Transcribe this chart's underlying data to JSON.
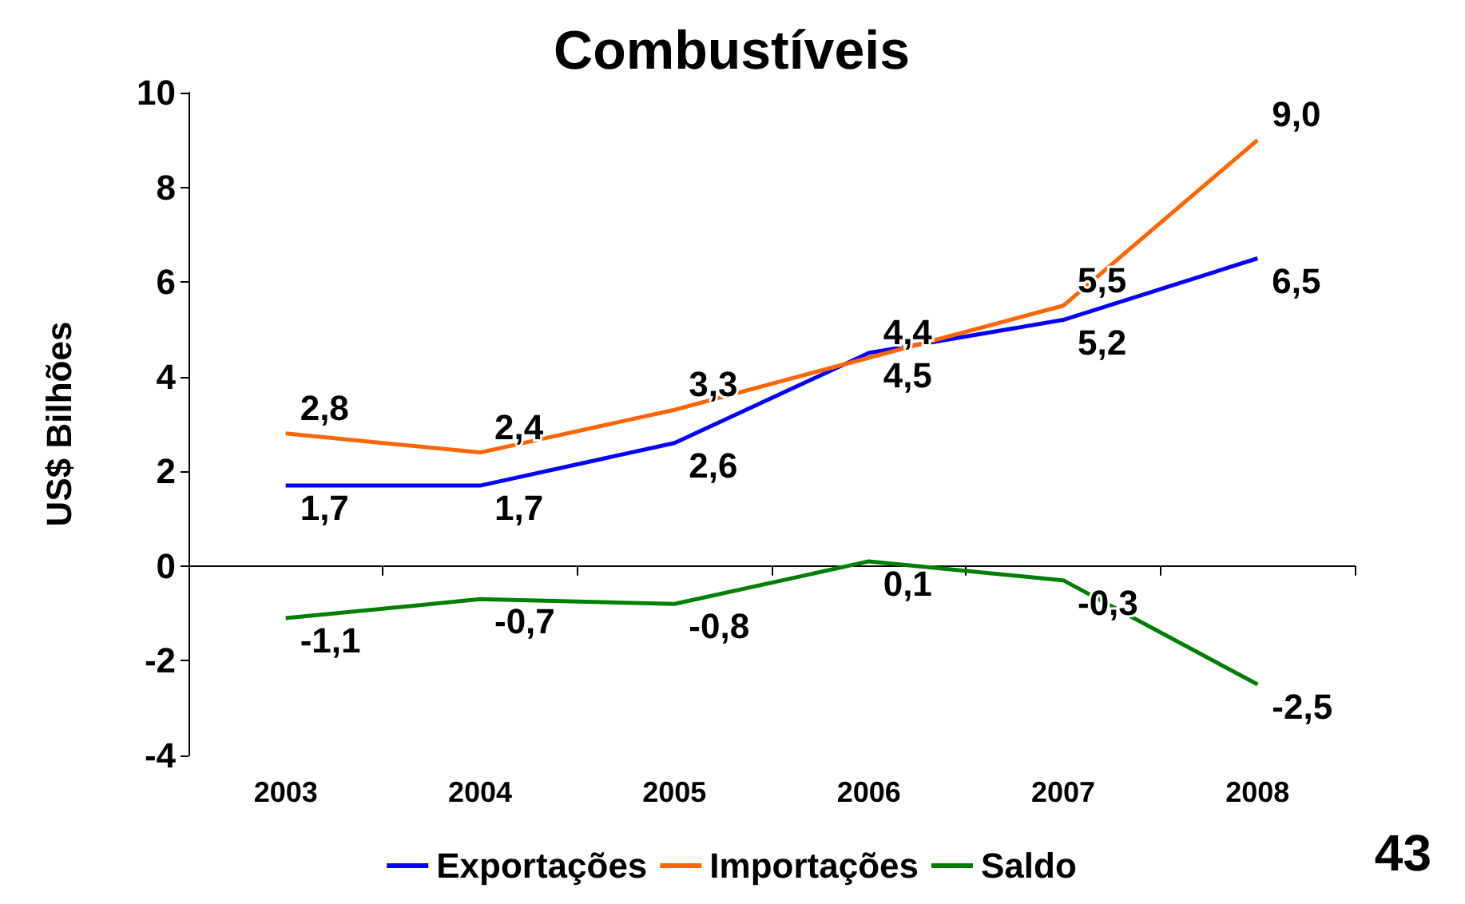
{
  "chart_data": {
    "type": "line",
    "title": "Combustíveis",
    "ylabel": "US$ Bilhões",
    "categories": [
      "2003",
      "2004",
      "2005",
      "2006",
      "2007",
      "2008"
    ],
    "series": [
      {
        "name": "Exportações",
        "color": "#0000ff",
        "values": [
          1.7,
          1.7,
          2.6,
          4.5,
          5.2,
          6.5
        ],
        "value_labels": [
          "1,7",
          "1,7",
          "2,6",
          "4,5",
          "5,2",
          "6,5"
        ]
      },
      {
        "name": "Importações",
        "color": "#ff6600",
        "values": [
          2.8,
          2.4,
          3.3,
          4.4,
          5.5,
          9.0
        ],
        "value_labels": [
          "2,8",
          "2,4",
          "3,3",
          "4,4",
          "5,5",
          "9,0"
        ]
      },
      {
        "name": "Saldo",
        "color": "#008000",
        "values": [
          -1.1,
          -0.7,
          -0.8,
          0.1,
          -0.3,
          -2.5
        ],
        "value_labels": [
          "-1,1",
          "-0,7",
          "-0,8",
          "0,1",
          "-0,3",
          "-2,5"
        ]
      }
    ],
    "ylim": [
      -4,
      10
    ],
    "yticks": [
      -4,
      -2,
      0,
      2,
      4,
      6,
      8,
      10
    ],
    "legend": "bottom",
    "marker": "none",
    "line_style": "solid",
    "annotations": [
      "43"
    ]
  }
}
